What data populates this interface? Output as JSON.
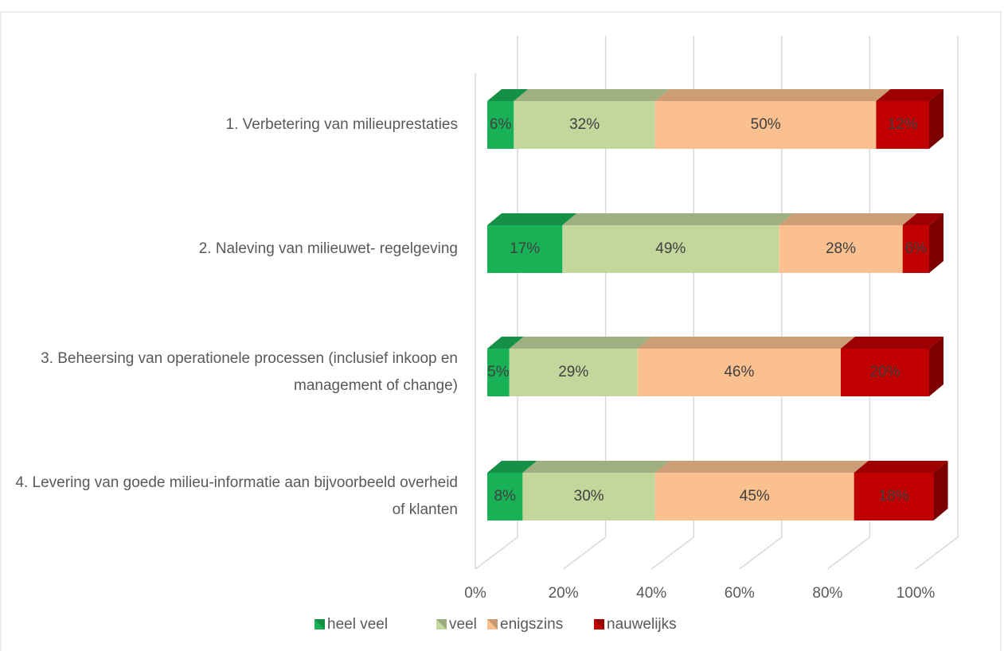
{
  "chart_data": {
    "type": "stacked-bar-3d",
    "categories": [
      "1. Verbetering van milieuprestaties",
      "2. Naleving van milieuwet- regelgeving",
      "3. Beheersing van operationele processen (inclusief inkoop en management of change)",
      "4. Levering van goede milieu-informatie aan bijvoorbeeld overheid of klanten"
    ],
    "series": [
      {
        "name": "heel veel",
        "color": "#18b155",
        "values": [
          6,
          17,
          5,
          8
        ],
        "value_labels": [
          "6%",
          "17%",
          "5%",
          "8%"
        ]
      },
      {
        "name": "veel",
        "color": "#c3d69b",
        "values": [
          32,
          49,
          29,
          30
        ],
        "value_labels": [
          "32%",
          "49%",
          "29%",
          "30%"
        ]
      },
      {
        "name": "enigszins",
        "color": "#fac08f",
        "values": [
          50,
          28,
          46,
          45
        ],
        "value_labels": [
          "50%",
          "28%",
          "46%",
          "45%"
        ]
      },
      {
        "name": "nauwelijks",
        "color": "#c00000",
        "values": [
          12,
          6,
          20,
          18
        ],
        "value_labels": [
          "12%",
          "6%",
          "20%",
          "18%"
        ]
      }
    ],
    "xlim": [
      0,
      100
    ],
    "xticks": [
      {
        "value": 0,
        "label": "0%"
      },
      {
        "value": 20,
        "label": "20%"
      },
      {
        "value": 40,
        "label": "40%"
      },
      {
        "value": 60,
        "label": "60%"
      },
      {
        "value": 80,
        "label": "80%"
      },
      {
        "value": 100,
        "label": "100%"
      }
    ],
    "grid": true,
    "legend": "bottom"
  }
}
